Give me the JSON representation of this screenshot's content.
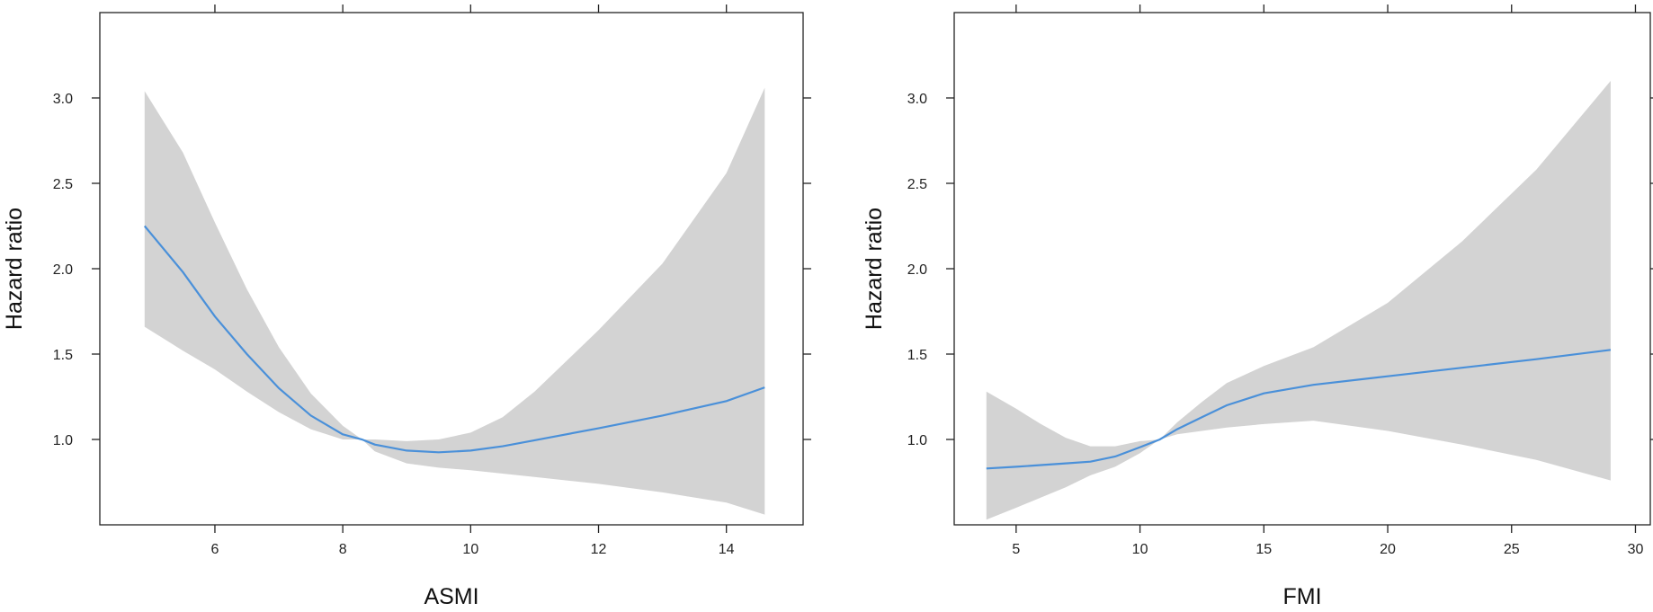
{
  "chart_data": [
    {
      "type": "line",
      "xlabel": "ASMI",
      "ylabel": "Hazard ratio",
      "xlim": [
        4.2,
        15.2
      ],
      "ylim": [
        0.5,
        3.5
      ],
      "xticks": [
        6,
        8,
        10,
        12,
        14
      ],
      "xtick_labels": [
        "6",
        "8",
        "10",
        "12",
        "14"
      ],
      "yticks": [
        1.0,
        1.5,
        2.0,
        2.5,
        3.0
      ],
      "ytick_labels": [
        "1.0",
        "1.5",
        "2.0",
        "2.5",
        "3.0"
      ],
      "grid": false,
      "series": [
        {
          "x": [
            4.9,
            5.5,
            6.0,
            6.5,
            7.0,
            7.5,
            8.0,
            8.3,
            8.5,
            9.0,
            9.5,
            10.0,
            10.5,
            11.0,
            12.0,
            13.0,
            14.0,
            14.6
          ],
          "y": [
            2.25,
            1.98,
            1.72,
            1.5,
            1.3,
            1.14,
            1.03,
            1.0,
            0.97,
            0.935,
            0.925,
            0.935,
            0.96,
            0.995,
            1.065,
            1.14,
            1.225,
            1.305
          ],
          "lower": [
            1.66,
            1.52,
            1.41,
            1.28,
            1.16,
            1.06,
            1.0,
            1.0,
            0.93,
            0.86,
            0.835,
            0.82,
            0.8,
            0.78,
            0.74,
            0.69,
            0.63,
            0.56
          ],
          "upper": [
            3.04,
            2.68,
            2.27,
            1.88,
            1.54,
            1.27,
            1.08,
            1.0,
            1.0,
            0.99,
            1.0,
            1.04,
            1.13,
            1.28,
            1.64,
            2.03,
            2.56,
            3.06
          ],
          "color": "#4a90d9",
          "band_color": "#d3d3d3"
        }
      ]
    },
    {
      "type": "line",
      "xlabel": "FMI",
      "ylabel": "Hazard ratio",
      "xlim": [
        2.5,
        30.6
      ],
      "ylim": [
        0.5,
        3.5
      ],
      "xticks": [
        5,
        10,
        15,
        20,
        25,
        30
      ],
      "xtick_labels": [
        "5",
        "10",
        "15",
        "20",
        "25",
        "30"
      ],
      "yticks": [
        1.0,
        1.5,
        2.0,
        2.5,
        3.0
      ],
      "ytick_labels": [
        "1.0",
        "1.5",
        "2.0",
        "2.5",
        "3.0"
      ],
      "grid": false,
      "series": [
        {
          "x": [
            3.8,
            5,
            6,
            7,
            8,
            9,
            10,
            10.8,
            11.5,
            12.5,
            13.5,
            15,
            17,
            20,
            23,
            26,
            29
          ],
          "y": [
            0.83,
            0.84,
            0.85,
            0.86,
            0.87,
            0.9,
            0.955,
            1.0,
            1.06,
            1.13,
            1.2,
            1.27,
            1.32,
            1.37,
            1.42,
            1.47,
            1.525
          ],
          "lower": [
            0.53,
            0.6,
            0.66,
            0.72,
            0.79,
            0.84,
            0.92,
            1.0,
            1.03,
            1.05,
            1.07,
            1.09,
            1.11,
            1.05,
            0.97,
            0.88,
            0.76
          ],
          "upper": [
            1.28,
            1.18,
            1.09,
            1.01,
            0.96,
            0.96,
            0.99,
            1.0,
            1.1,
            1.22,
            1.33,
            1.43,
            1.54,
            1.8,
            2.16,
            2.58,
            3.1
          ],
          "color": "#4a90d9",
          "band_color": "#d3d3d3"
        }
      ]
    }
  ]
}
